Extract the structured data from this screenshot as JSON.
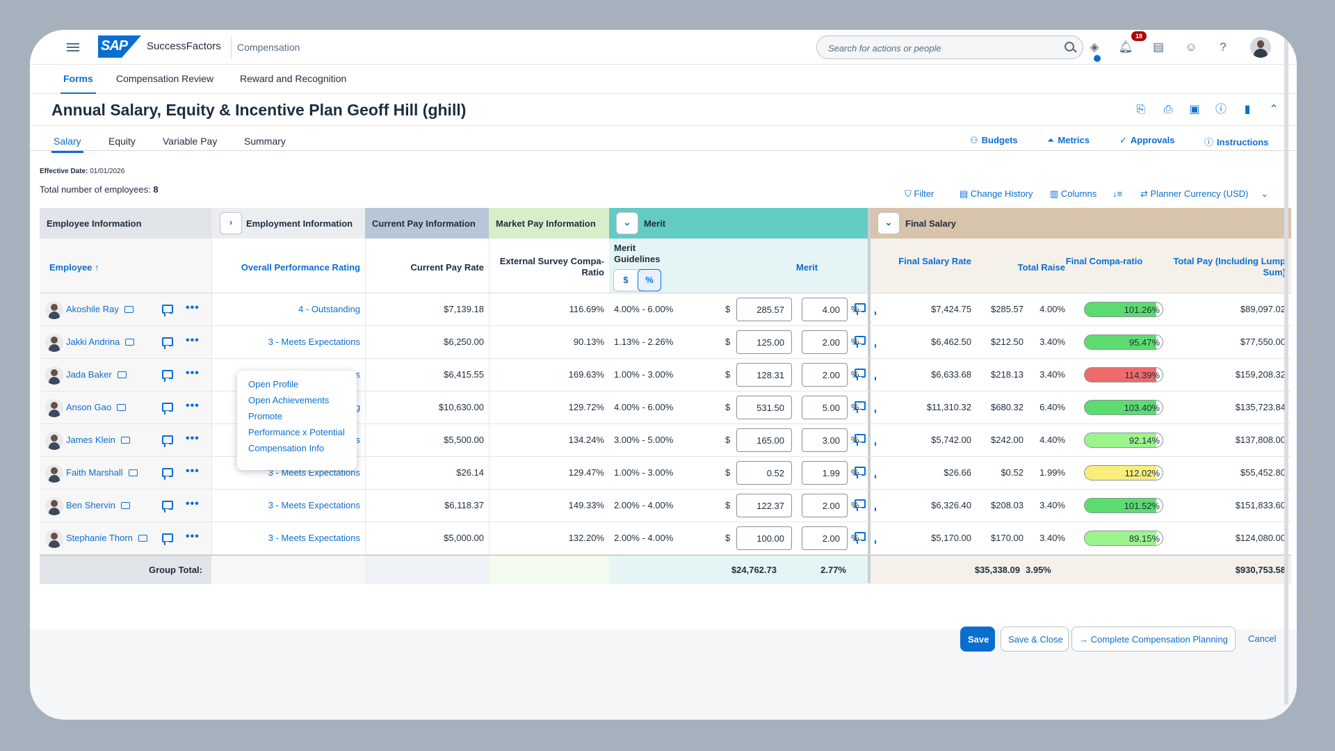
{
  "shell": {
    "product": "SuccessFactors",
    "module": "Compensation",
    "search_placeholder": "Search for actions or people",
    "notification_count": "18"
  },
  "nav": {
    "tabs": [
      "Forms",
      "Compensation Review",
      "Reward and Recognition"
    ],
    "active": "Forms"
  },
  "page": {
    "title": "Annual Salary, Equity & Incentive Plan Geoff Hill (ghill)"
  },
  "plan_tabs": {
    "items": [
      "Salary",
      "Equity",
      "Variable Pay",
      "Summary"
    ],
    "active": "Salary"
  },
  "plan_tools": {
    "budgets": "Budgets",
    "metrics": "Metrics",
    "approvals": "Approvals",
    "instructions": "Instructions"
  },
  "info": {
    "effective_label": "Effective Date:",
    "effective_value": "01/01/2026",
    "total_label": "Total number of employees:",
    "total_value": "8"
  },
  "table_tools": {
    "filter": "Filter",
    "change_history": "Change History",
    "columns": "Columns",
    "currency": "Planner Currency (USD)"
  },
  "groups": {
    "employee_info": "Employee Information",
    "employment_info": "Employment Information",
    "current_pay": "Current Pay Information",
    "market_pay": "Market Pay Information",
    "merit": "Merit",
    "final_salary": "Final Salary"
  },
  "columns": {
    "employee": "Employee",
    "performance": "Overall Performance Rating",
    "current_pay_rate": "Current Pay Rate",
    "compa_ratio": "External Survey Compa-Ratio",
    "merit_guidelines": "Merit Guidelines",
    "toggle_dollar": "$",
    "toggle_percent": "%",
    "merit": "Merit",
    "final_salary_rate": "Final Salary Rate",
    "total_raise": "Total Raise",
    "final_compa_ratio": "Final Compa-ratio",
    "total_pay": "Total Pay (Including Lump Sum)"
  },
  "colors": {
    "green": "#5cdc6e",
    "light_green": "#9cf58c",
    "red": "#ee6b6b",
    "yellow": "#f9ee7c",
    "accent": "#0a6ed1"
  },
  "rows": [
    {
      "name": "Akoshile Ray",
      "rating": "4 - Outstanding",
      "pay_rate": "$7,139.18",
      "compa": "116.69%",
      "guideline": "4.00% - 6.00%",
      "cur": "$",
      "merit_amt": "285.57",
      "merit_pct": "4.00",
      "pct_sign": "%",
      "final_rate": "$7,424.75",
      "raise_amt": "$285.57",
      "raise_pct": "4.00%",
      "final_compa": "101.26%",
      "final_compa_value": 101.26,
      "compa_color": "green",
      "total_pay": "$89,097.02"
    },
    {
      "name": "Jakki Andrina",
      "rating": "3 - Meets Expectations",
      "pay_rate": "$6,250.00",
      "compa": "90.13%",
      "guideline": "1.13% - 2.26%",
      "cur": "$",
      "merit_amt": "125.00",
      "merit_pct": "2.00",
      "pct_sign": "%",
      "final_rate": "$6,462.50",
      "raise_amt": "$212.50",
      "raise_pct": "3.40%",
      "final_compa": "95.47%",
      "final_compa_value": 95.47,
      "compa_color": "green",
      "total_pay": "$77,550.00"
    },
    {
      "name": "Jada Baker",
      "rating": "3 - Meets Expectations",
      "pay_rate": "$6,415.55",
      "compa": "169.63%",
      "guideline": "1.00% - 3.00%",
      "cur": "$",
      "merit_amt": "128.31",
      "merit_pct": "2.00",
      "pct_sign": "%",
      "final_rate": "$6,633.68",
      "raise_amt": "$218.13",
      "raise_pct": "3.40%",
      "final_compa": "114.39%",
      "final_compa_value": 114.39,
      "compa_color": "red",
      "total_pay": "$159,208.32"
    },
    {
      "name": "Anson Gao",
      "rating": "4 - Outstanding",
      "pay_rate": "$10,630.00",
      "compa": "129.72%",
      "guideline": "4.00% - 6.00%",
      "cur": "$",
      "merit_amt": "531.50",
      "merit_pct": "5.00",
      "pct_sign": "%",
      "final_rate": "$11,310.32",
      "raise_amt": "$680.32",
      "raise_pct": "6.40%",
      "final_compa": "103.40%",
      "final_compa_value": 103.4,
      "compa_color": "green",
      "total_pay": "$135,723.84"
    },
    {
      "name": "James Klein",
      "rating": "3 - Meets Expectations",
      "pay_rate": "$5,500.00",
      "compa": "134.24%",
      "guideline": "3.00% - 5.00%",
      "cur": "$",
      "merit_amt": "165.00",
      "merit_pct": "3.00",
      "pct_sign": "%",
      "final_rate": "$5,742.00",
      "raise_amt": "$242.00",
      "raise_pct": "4.40%",
      "final_compa": "92.14%",
      "final_compa_value": 92.14,
      "compa_color": "light_green",
      "total_pay": "$137,808.00"
    },
    {
      "name": "Faith Marshall",
      "rating": "3 - Meets Expectations",
      "pay_rate": "$26.14",
      "compa": "129.47%",
      "guideline": "1.00% - 3.00%",
      "cur": "$",
      "merit_amt": "0.52",
      "merit_pct": "1.99",
      "pct_sign": "%",
      "final_rate": "$26.66",
      "raise_amt": "$0.52",
      "raise_pct": "1.99%",
      "final_compa": "112.02%",
      "final_compa_value": 112.02,
      "compa_color": "yellow",
      "total_pay": "$55,452.80"
    },
    {
      "name": "Ben Shervin",
      "rating": "3 - Meets Expectations",
      "pay_rate": "$6,118.37",
      "compa": "149.33%",
      "guideline": "2.00% - 4.00%",
      "cur": "$",
      "merit_amt": "122.37",
      "merit_pct": "2.00",
      "pct_sign": "%",
      "final_rate": "$6,326.40",
      "raise_amt": "$208.03",
      "raise_pct": "3.40%",
      "final_compa": "101.52%",
      "final_compa_value": 101.52,
      "compa_color": "green",
      "total_pay": "$151,833.60"
    },
    {
      "name": "Stephanie Thorn",
      "rating": "3 - Meets Expectations",
      "pay_rate": "$5,000.00",
      "compa": "132.20%",
      "guideline": "2.00% - 4.00%",
      "cur": "$",
      "merit_amt": "100.00",
      "merit_pct": "2.00",
      "pct_sign": "%",
      "final_rate": "$5,170.00",
      "raise_amt": "$170.00",
      "raise_pct": "3.40%",
      "final_compa": "89.15%",
      "final_compa_value": 89.15,
      "compa_color": "light_green",
      "total_pay": "$124,080.00"
    }
  ],
  "totals": {
    "label": "Group Total:",
    "merit_amt": "$24,762.73",
    "merit_pct": "2.77%",
    "final_salary": "$35,338.09",
    "raise_pct": "3.95%",
    "total_pay": "$930,753.58"
  },
  "popover": {
    "items": [
      "Open Profile",
      "Open Achievements",
      "Promote",
      "Performance x Potential",
      "Compensation Info"
    ]
  },
  "footer": {
    "save": "Save",
    "save_close": "Save & Close",
    "complete": "Complete Compensation Planning",
    "cancel": "Cancel"
  }
}
